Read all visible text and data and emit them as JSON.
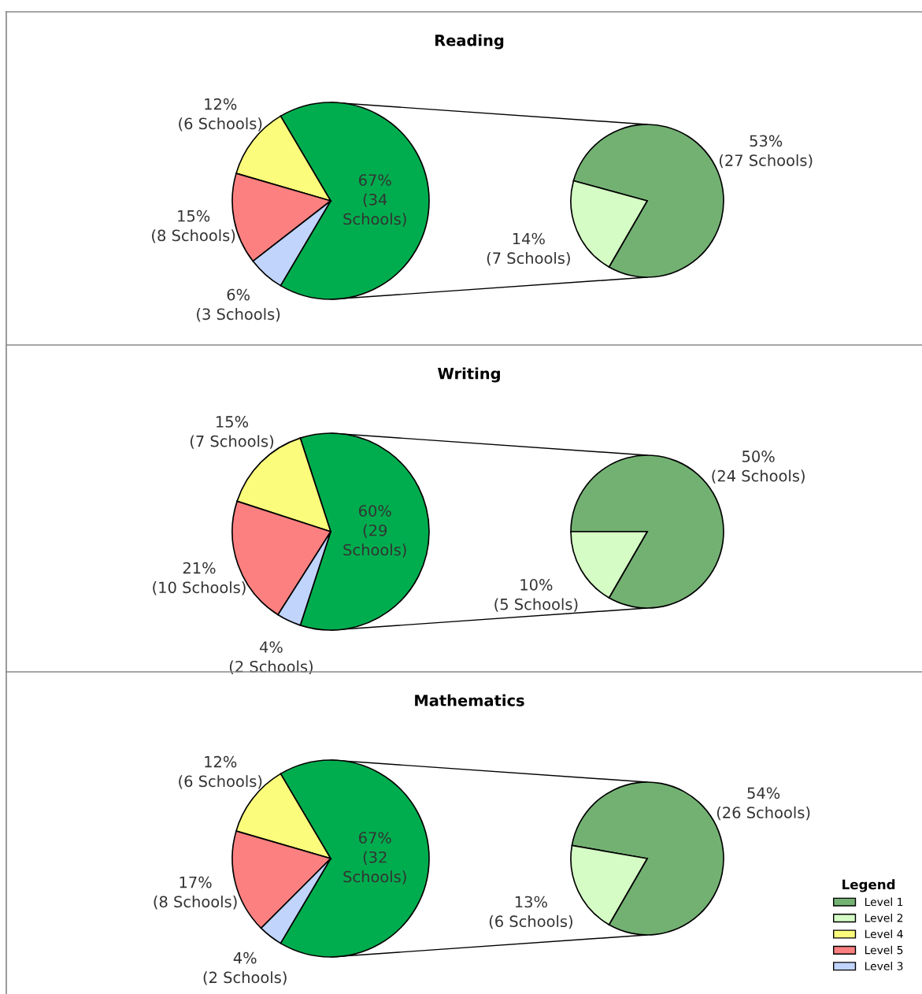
{
  "chart_data": [
    {
      "type": "pie",
      "title": "Reading",
      "categories": [
        null,
        null,
        null,
        null
      ],
      "values": [
        67,
        12,
        15,
        6
      ],
      "colors": [
        "#00ad4e",
        "#fcfc7c",
        "#fc8080",
        "#c0d4fc"
      ],
      "value_labels": [
        "67%\n(34\nSchools)",
        "12%\n(6 Schools)",
        "15%\n(8 Schools)",
        "6%\n(3 Schools)"
      ]
    },
    {
      "type": "pie",
      "categories": [
        null,
        null
      ],
      "values": [
        53,
        14
      ],
      "colors": [
        "#73b173",
        "#d4fcc4"
      ],
      "value_labels": [
        "53%\n(27 Schools)",
        "14%\n(7 Schools)"
      ]
    },
    {
      "type": "pie",
      "title": "Writing",
      "categories": [
        null,
        null,
        null,
        null
      ],
      "values": [
        60,
        15,
        21,
        4
      ],
      "colors": [
        "#00ad4e",
        "#fcfc7c",
        "#fc8080",
        "#c0d4fc"
      ],
      "value_labels": [
        "60%\n(29\nSchools)",
        "15%\n(7 Schools)",
        "21%\n(10 Schools)",
        "4%\n(2 Schools)"
      ]
    },
    {
      "type": "pie",
      "categories": [
        null,
        null
      ],
      "values": [
        50,
        10
      ],
      "colors": [
        "#73b173",
        "#d4fcc4"
      ],
      "value_labels": [
        "50%\n(24 Schools)",
        "10%\n(5 Schools)"
      ]
    },
    {
      "type": "pie",
      "title": "Mathematics",
      "categories": [
        null,
        "Level 4",
        "Level 5",
        "Level 3"
      ],
      "values": [
        67,
        12,
        17,
        4
      ],
      "colors": [
        "#00ad4e",
        "#fcfc7c",
        "#fc8080",
        "#c0d4fc"
      ],
      "value_labels": [
        "67%\n(32\nSchools)",
        "12%\n(6 Schools)",
        "17%\n(8 Schools)",
        "4%\n(2 Schools)"
      ],
      "legend": "bottom right"
    },
    {
      "type": "pie",
      "categories": [
        "Level 1",
        "Level 2"
      ],
      "values": [
        54,
        13
      ],
      "colors": [
        "#73b173",
        "#d4fcc4"
      ],
      "value_labels": [
        "54%\n(26 Schools)",
        "13%\n(6 Schools)"
      ],
      "legend": "bottom right",
      "legend_title": "Legend"
    }
  ]
}
